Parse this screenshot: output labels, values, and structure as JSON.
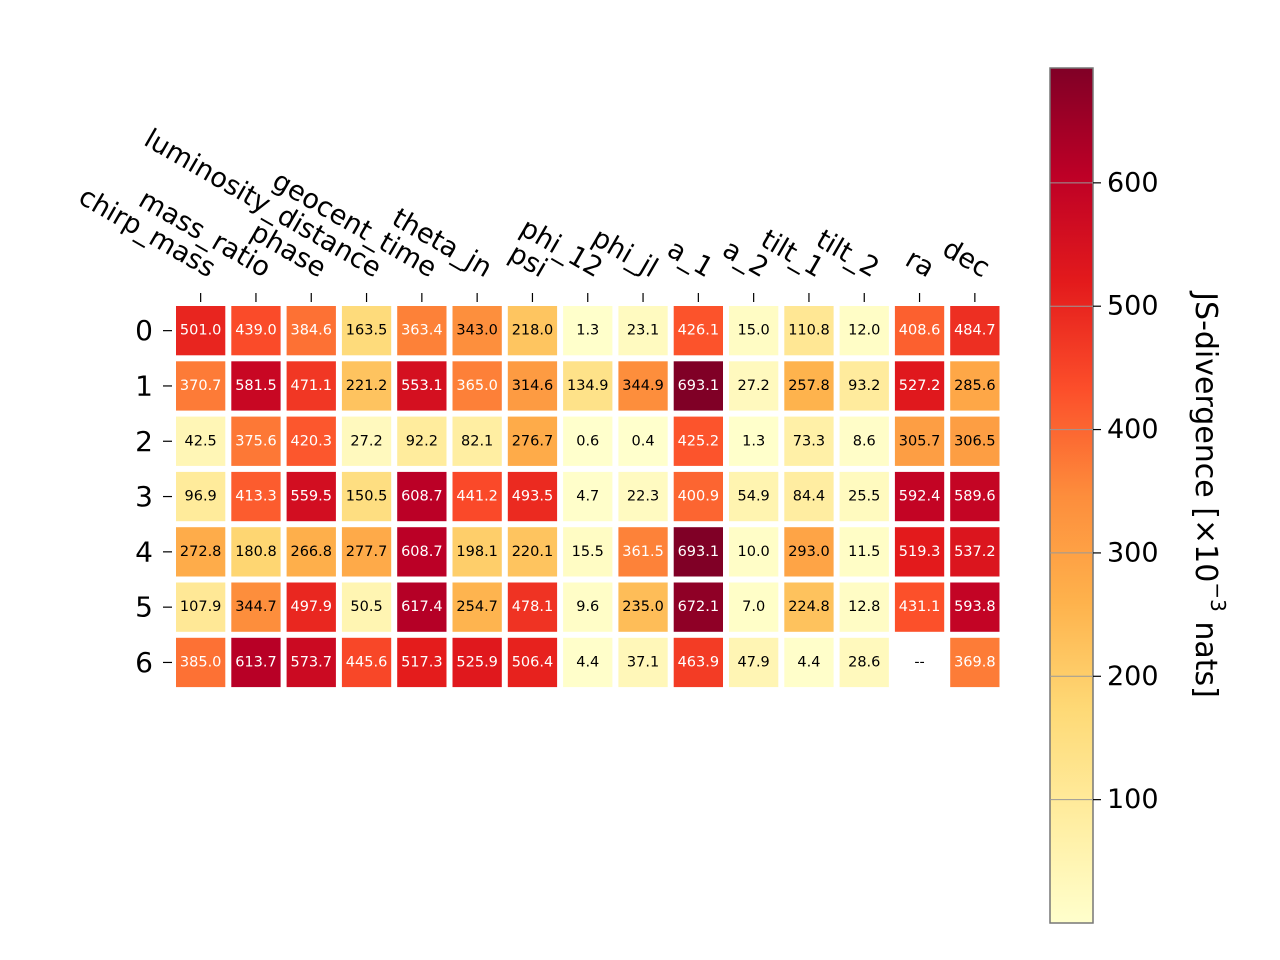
{
  "chart_data": {
    "type": "heatmap",
    "columns": [
      "chirp_mass",
      "mass_ratio",
      "phase",
      "luminosity_distance",
      "geocent_time",
      "theta_jn",
      "psi",
      "phi_12",
      "phi_jl",
      "a_1",
      "a_2",
      "tilt_1",
      "tilt_2",
      "ra",
      "dec"
    ],
    "rows": [
      "0",
      "1",
      "2",
      "3",
      "4",
      "5",
      "6"
    ],
    "values": [
      [
        501.0,
        439.0,
        384.6,
        163.5,
        363.4,
        343.0,
        218.0,
        1.3,
        23.1,
        426.1,
        15.0,
        110.8,
        12.0,
        408.6,
        484.7
      ],
      [
        370.7,
        581.5,
        471.1,
        221.2,
        553.1,
        365.0,
        314.6,
        134.9,
        344.9,
        693.1,
        27.2,
        257.8,
        93.2,
        527.2,
        285.6
      ],
      [
        42.5,
        375.6,
        420.3,
        27.2,
        92.2,
        82.1,
        276.7,
        0.6,
        0.4,
        425.2,
        1.3,
        73.3,
        8.6,
        305.7,
        306.5
      ],
      [
        96.9,
        413.3,
        559.5,
        150.5,
        608.7,
        441.2,
        493.5,
        4.7,
        22.3,
        400.9,
        54.9,
        84.4,
        25.5,
        592.4,
        589.6
      ],
      [
        272.8,
        180.8,
        266.8,
        277.7,
        608.7,
        198.1,
        220.1,
        15.5,
        361.5,
        693.1,
        10.0,
        293.0,
        11.5,
        519.3,
        537.2
      ],
      [
        107.9,
        344.7,
        497.9,
        50.5,
        617.4,
        254.7,
        478.1,
        9.6,
        235.0,
        672.1,
        7.0,
        224.8,
        12.8,
        431.1,
        593.8
      ],
      [
        385.0,
        613.7,
        573.7,
        445.6,
        517.3,
        525.9,
        506.4,
        4.4,
        37.1,
        463.9,
        47.9,
        4.4,
        28.6,
        null,
        369.8
      ]
    ],
    "missing_label": "--",
    "colorbar": {
      "label_main": "JS-divergence [×10",
      "label_exp": "−3",
      "label_tail": " nats]",
      "ticks": [
        "100",
        "200",
        "300",
        "400",
        "500",
        "600"
      ],
      "range": [
        0,
        693.1
      ],
      "colormap": "YlOrRd"
    },
    "colors": [
      "#ffffcc",
      "#ffeda0",
      "#fed976",
      "#feb24c",
      "#fd8d3c",
      "#fc4e2a",
      "#e31a1c",
      "#bd0026",
      "#800026"
    ]
  }
}
